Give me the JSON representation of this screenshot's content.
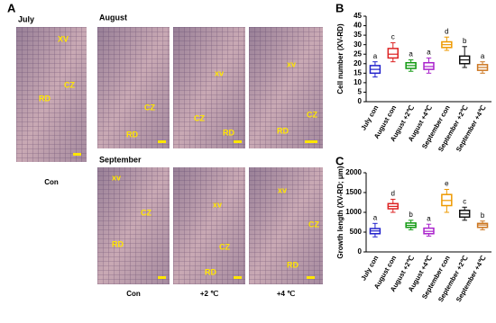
{
  "panel_labels": [
    "A",
    "B",
    "C"
  ],
  "micrographs": {
    "row_titles": [
      "July",
      "August",
      "September"
    ],
    "column_labels": [
      "Con",
      "Con",
      "+2 ℃",
      "+4 ℃"
    ],
    "images": [
      {
        "labels": [
          "XV",
          "CZ",
          "RD"
        ]
      },
      {
        "labels": [
          "CZ",
          "RD"
        ]
      },
      {
        "labels": [
          "xv",
          "CZ",
          "RD"
        ]
      },
      {
        "labels": [
          "xv",
          "CZ",
          "RD"
        ]
      },
      {
        "labels": [
          "xv",
          "CZ",
          "RD"
        ]
      },
      {
        "labels": [
          "xv",
          "CZ",
          "RD"
        ]
      },
      {
        "labels": [
          "xv",
          "CZ",
          "RD"
        ]
      }
    ]
  },
  "chart_data": [
    {
      "type": "box",
      "y_label": "Cell number (XV-RD)",
      "categories": [
        "July con",
        "August con",
        "August +2℃",
        "August +4℃",
        "September con",
        "September +2℃",
        "September +4℃"
      ],
      "colors": [
        "#2222cc",
        "#dd2222",
        "#119911",
        "#aa22cc",
        "#ee9900",
        "#111111",
        "#cc7722"
      ],
      "boxes": [
        {
          "min": 13,
          "q1": 15,
          "median": 17,
          "q3": 19,
          "max": 21
        },
        {
          "min": 21,
          "q1": 23,
          "median": 25,
          "q3": 28,
          "max": 31
        },
        {
          "min": 16,
          "q1": 17.5,
          "median": 19,
          "q3": 20.5,
          "max": 22
        },
        {
          "min": 15,
          "q1": 17,
          "median": 18.5,
          "q3": 20.5,
          "max": 23
        },
        {
          "min": 27,
          "q1": 28.5,
          "median": 30,
          "q3": 31.5,
          "max": 34
        },
        {
          "min": 18,
          "q1": 20,
          "median": 22,
          "q3": 24,
          "max": 29
        },
        {
          "min": 15,
          "q1": 16.5,
          "median": 18,
          "q3": 19.5,
          "max": 21
        }
      ],
      "annotations": [
        "a",
        "c",
        "a",
        "a",
        "d",
        "b",
        "a"
      ],
      "ylim": [
        0,
        45
      ],
      "yticks": [
        0,
        5,
        10,
        15,
        20,
        25,
        30,
        35,
        40,
        45
      ]
    },
    {
      "type": "box",
      "y_label": "Growth length (XV-RD; μm)",
      "categories": [
        "July con",
        "August con",
        "August +2℃",
        "August +4℃",
        "September con",
        "September +2℃",
        "September +4℃"
      ],
      "colors": [
        "#2222cc",
        "#dd2222",
        "#119911",
        "#aa22cc",
        "#ee9900",
        "#111111",
        "#cc7722"
      ],
      "boxes": [
        {
          "min": 380,
          "q1": 460,
          "median": 530,
          "q3": 590,
          "max": 720
        },
        {
          "min": 1000,
          "q1": 1090,
          "median": 1150,
          "q3": 1220,
          "max": 1330
        },
        {
          "min": 560,
          "q1": 620,
          "median": 670,
          "q3": 730,
          "max": 800
        },
        {
          "min": 400,
          "q1": 460,
          "median": 520,
          "q3": 600,
          "max": 700
        },
        {
          "min": 1000,
          "q1": 1170,
          "median": 1300,
          "q3": 1450,
          "max": 1580
        },
        {
          "min": 800,
          "q1": 880,
          "median": 960,
          "q3": 1050,
          "max": 1130
        },
        {
          "min": 560,
          "q1": 620,
          "median": 680,
          "q3": 720,
          "max": 780
        }
      ],
      "annotations": [
        "a",
        "d",
        "b",
        "a",
        "e",
        "c",
        "b"
      ],
      "ylim": [
        0,
        2000
      ],
      "yticks": [
        0,
        500,
        1000,
        1500,
        2000
      ]
    }
  ]
}
